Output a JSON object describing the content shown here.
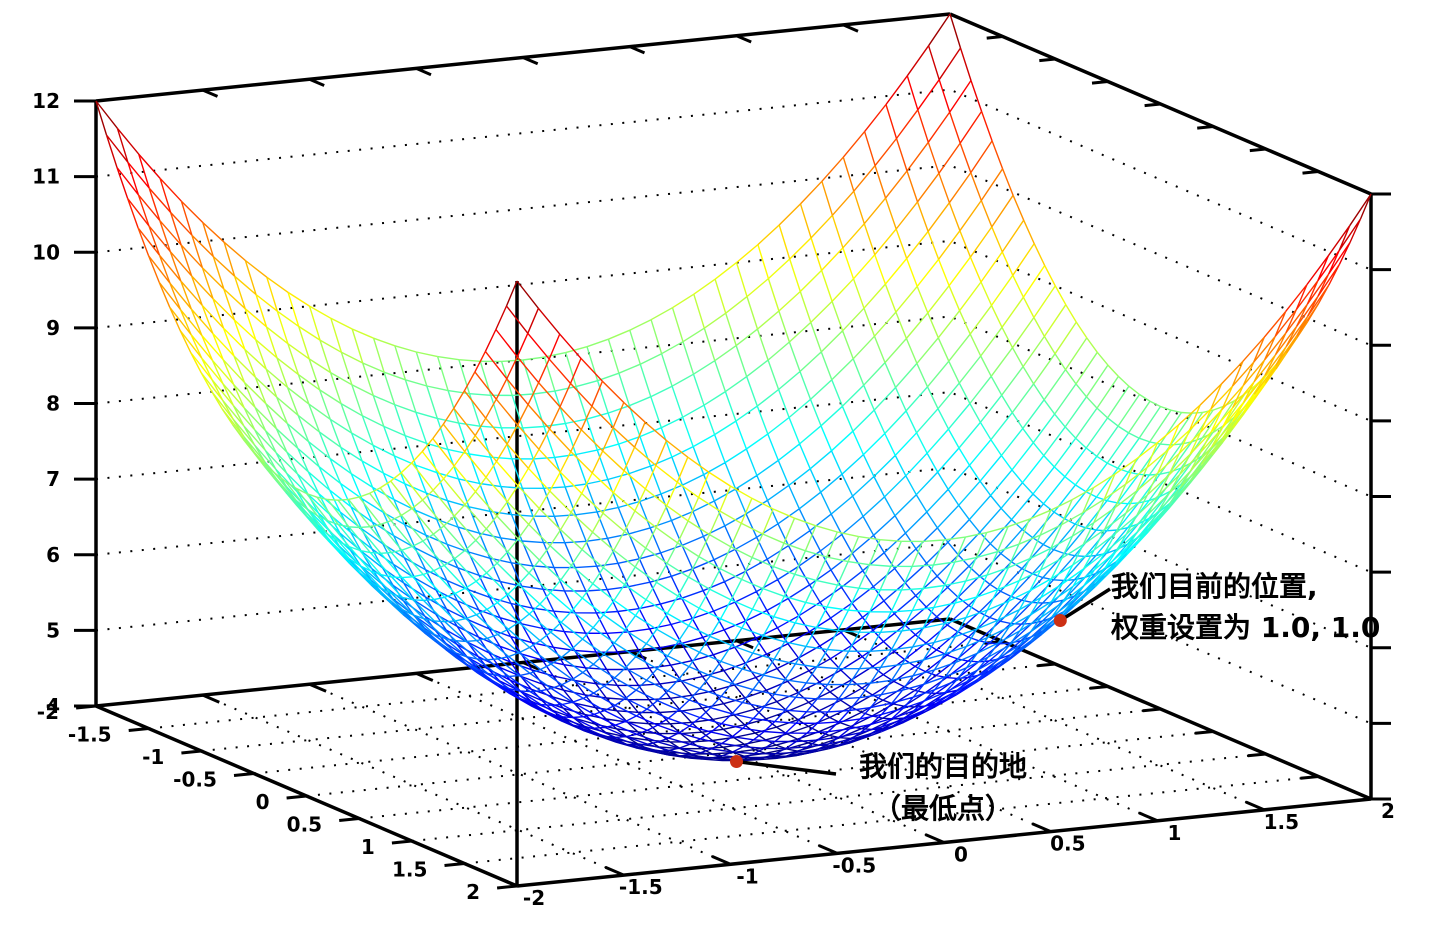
{
  "chart_data": {
    "type": "surface",
    "title": "",
    "surface": {
      "formula": "z = x^2 + y^2 + 4",
      "z_coefficients": {
        "x2": 1,
        "y2": 1,
        "const": 4
      },
      "x_min": -2,
      "x_max": 2,
      "y_min": -2,
      "y_max": 2,
      "mesh_divisions": 40
    },
    "colormap": "jet",
    "axes": {
      "x": {
        "ticks": [
          -2,
          -1.5,
          -1,
          -0.5,
          0,
          0.5,
          1,
          1.5,
          2
        ],
        "labels": [
          "-2",
          "-1.5",
          "-1",
          "-0.5",
          "0",
          "0.5",
          "1",
          "1.5",
          "2"
        ]
      },
      "y": {
        "ticks": [
          -2,
          -1.5,
          -1,
          -0.5,
          0,
          0.5,
          1,
          1.5,
          2
        ],
        "labels": [
          "-2",
          "-1.5",
          "-1",
          "-0.5",
          "0",
          "0.5",
          "1",
          "1.5",
          "2"
        ]
      },
      "z": {
        "ticks": [
          4,
          5,
          6,
          7,
          8,
          9,
          10,
          11,
          12
        ],
        "labels": [
          "4",
          "5",
          "6",
          "7",
          "8",
          "9",
          "10",
          "11",
          "12"
        ],
        "range": [
          4,
          12
        ]
      }
    },
    "grid": {
      "wall_z_lines": [
        5,
        6,
        7,
        8,
        9,
        10,
        11
      ],
      "floor_lines": [
        -1.5,
        -1,
        -0.5,
        0,
        0.5,
        1,
        1.5
      ],
      "style": "dotted"
    },
    "points": [
      {
        "id": "current_position",
        "x": 1,
        "y": 1,
        "z": 6,
        "color": "#cc3014"
      },
      {
        "id": "destination",
        "x": 0,
        "y": 0,
        "z": 4,
        "color": "#cc3014"
      }
    ]
  },
  "annotations": {
    "current_position": {
      "line1": "我们目前的位置,",
      "line2": "权重设置为 1.0, 1.0"
    },
    "destination": {
      "line1": "我们的目的地",
      "line2": "（最低点）"
    }
  },
  "colors": {
    "frame": "#000000",
    "grid_dots": "#000000",
    "annotation_text": "#000000",
    "marker": "#cc3014",
    "background": "#ffffff"
  }
}
